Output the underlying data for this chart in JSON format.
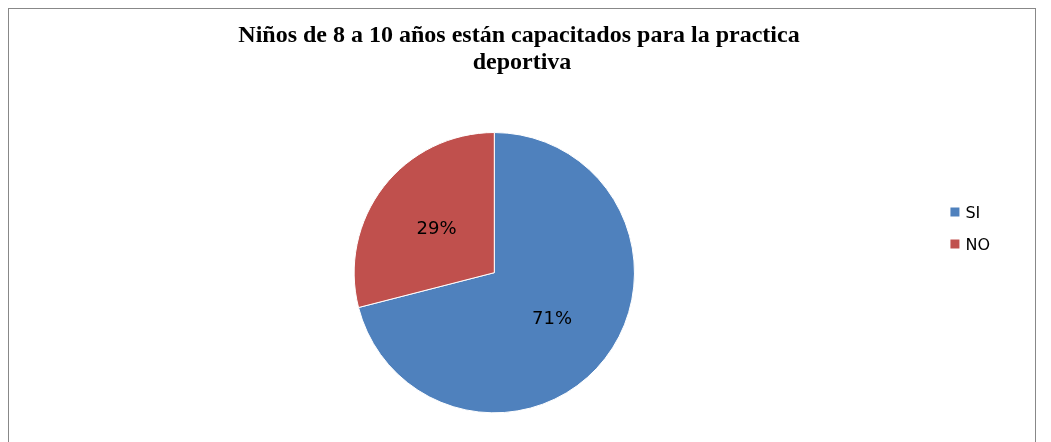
{
  "chart_data": {
    "type": "pie",
    "title": "Niños de 8 a 10 años están capacitados para la practica deportiva",
    "categories": [
      "SI",
      "NO"
    ],
    "values": [
      71,
      29
    ],
    "colors": [
      "#4f81bd",
      "#c0504d"
    ],
    "value_labels": [
      "71%",
      "29%"
    ],
    "legend": "right"
  }
}
